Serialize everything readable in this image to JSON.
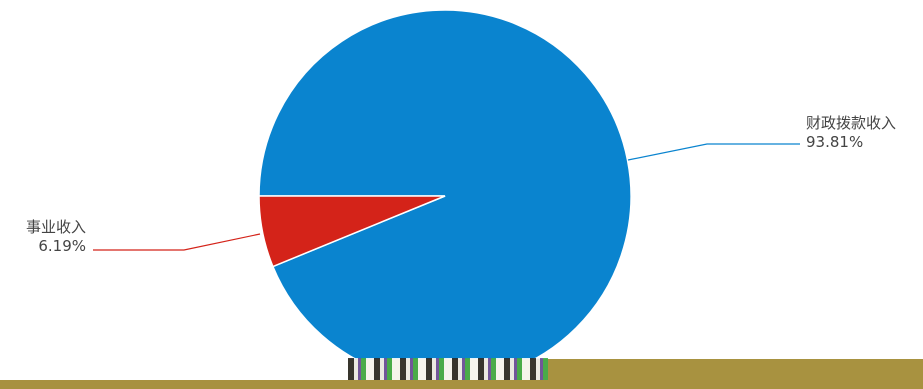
{
  "chart_data": {
    "type": "pie",
    "title": "",
    "start_angle_deg": 180,
    "slices": [
      {
        "label": "财政拨款收入",
        "value": 93.81,
        "percent_label": "93.81%",
        "color": "#0a84cf"
      },
      {
        "label": "事业收入",
        "value": 6.19,
        "percent_label": "6.19%",
        "color": "#d42319"
      }
    ]
  }
}
